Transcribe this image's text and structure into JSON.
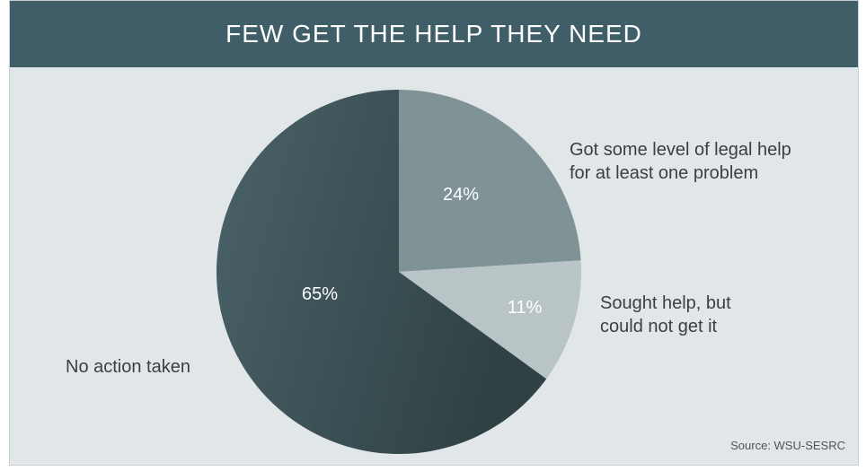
{
  "header": {
    "title": "FEW GET THE HELP THEY NEED"
  },
  "source": "Source: WSU-SESRC",
  "colors": {
    "header_bg": "#3f5e68",
    "panel_bg": "#e1e6e8",
    "slice_no_action": "#3d5459",
    "slice_got_help": "#7f9296",
    "slice_sought_help": "#b9c4c6"
  },
  "chart_data": {
    "type": "pie",
    "title": "FEW GET THE HELP THEY NEED",
    "slices": [
      {
        "label_lines": [
          "Got some level of legal help",
          "for at least one problem"
        ],
        "value": 24,
        "value_label": "24%",
        "color": "#7f9296"
      },
      {
        "label_lines": [
          "Sought help, but",
          "could not get it"
        ],
        "value": 11,
        "value_label": "11%",
        "color": "#b9c4c6"
      },
      {
        "label_lines": [
          "No action taken"
        ],
        "value": 65,
        "value_label": "65%",
        "color": "#3d5459"
      }
    ],
    "start_angle_deg": 0,
    "direction": "clockwise",
    "legend": "outside-labels"
  }
}
